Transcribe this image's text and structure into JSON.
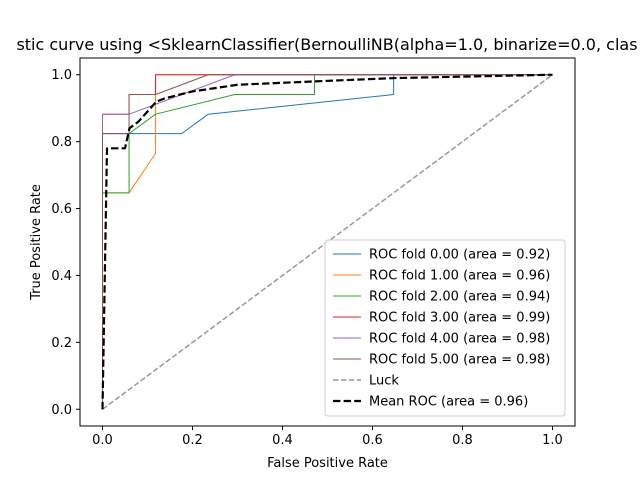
{
  "chart_data": {
    "type": "line",
    "title": "stic curve using <SklearnClassifier(BernoulliNB(alpha=1.0, binarize=0.0, clas",
    "xlabel": "False Positive Rate",
    "ylabel": "True Positive Rate",
    "xlim": [
      -0.05,
      1.05
    ],
    "ylim": [
      -0.05,
      1.05
    ],
    "xticks": [
      "0.0",
      "0.2",
      "0.4",
      "0.6",
      "0.8",
      "1.0"
    ],
    "yticks": [
      "0.0",
      "0.2",
      "0.4",
      "0.6",
      "0.8",
      "1.0"
    ],
    "grid": false,
    "legend_position": "lower-right",
    "series": [
      {
        "name": "ROC fold 0.00 (area = 0.92)",
        "color": "#1f77b4",
        "style": "solid",
        "x": [
          0,
          0,
          0.176,
          0.235,
          0.647,
          0.647,
          1.0
        ],
        "y": [
          0,
          0.824,
          0.824,
          0.882,
          0.941,
          1.0,
          1.0
        ]
      },
      {
        "name": "ROC fold 1.00 (area = 0.96)",
        "color": "#ff7f0e",
        "style": "solid",
        "x": [
          0,
          0,
          0.059,
          0.118,
          0.118,
          1.0
        ],
        "y": [
          0,
          0.647,
          0.647,
          0.765,
          1.0,
          1.0
        ]
      },
      {
        "name": "ROC fold 2.00 (area = 0.94)",
        "color": "#2ca02c",
        "style": "solid",
        "x": [
          0,
          0,
          0.059,
          0.059,
          0.118,
          0.294,
          0.471,
          0.471,
          1.0
        ],
        "y": [
          0,
          0.647,
          0.647,
          0.824,
          0.882,
          0.941,
          0.941,
          1.0,
          1.0
        ]
      },
      {
        "name": "ROC fold 3.00 (area = 0.99)",
        "color": "#d62728",
        "style": "solid",
        "x": [
          0,
          0,
          0.059,
          0.059,
          0.118,
          0.118,
          1.0
        ],
        "y": [
          0,
          0.882,
          0.882,
          0.941,
          0.941,
          1.0,
          1.0
        ]
      },
      {
        "name": "ROC fold 4.00 (area = 0.98)",
        "color": "#9467bd",
        "style": "solid",
        "x": [
          0,
          0,
          0.059,
          0.059,
          0.294,
          1.0
        ],
        "y": [
          0,
          0.882,
          0.882,
          0.882,
          1.0,
          1.0
        ]
      },
      {
        "name": "ROC fold 5.00 (area = 0.98)",
        "color": "#8c564b",
        "style": "solid",
        "x": [
          0,
          0,
          0.059,
          0.059,
          0.118,
          0.235,
          1.0
        ],
        "y": [
          0,
          0.824,
          0.824,
          0.941,
          0.941,
          1.0,
          1.0
        ]
      },
      {
        "name": "Luck",
        "color": "#999999",
        "style": "dashed",
        "x": [
          0,
          1
        ],
        "y": [
          0,
          1
        ]
      },
      {
        "name": "Mean ROC (area = 0.96)",
        "color": "#000000",
        "style": "dashed-bold",
        "x": [
          0,
          0.01,
          0.05,
          0.06,
          0.08,
          0.12,
          0.14,
          0.2,
          0.3,
          0.47,
          0.65,
          1.0
        ],
        "y": [
          0,
          0.78,
          0.78,
          0.84,
          0.86,
          0.92,
          0.93,
          0.95,
          0.97,
          0.98,
          0.99,
          1.0
        ]
      }
    ]
  }
}
